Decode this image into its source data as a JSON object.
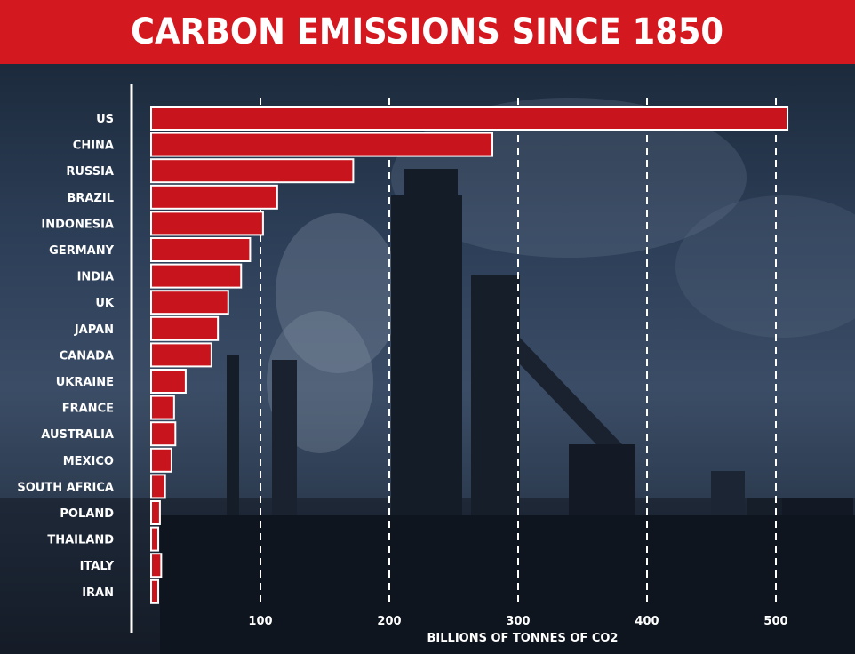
{
  "chart_data": {
    "type": "bar",
    "orientation": "horizontal",
    "title": "CARBON EMISSIONS SINCE 1850",
    "xlabel": "BILLIONS OF TONNES OF CO2",
    "categories": [
      "US",
      "CHINA",
      "RUSSIA",
      "BRAZIL",
      "INDONESIA",
      "GERMANY",
      "INDIA",
      "UK",
      "JAPAN",
      "CANADA",
      "UKRAINE",
      "FRANCE",
      "AUSTRALIA",
      "MEXICO",
      "SOUTH AFRICA",
      "POLAND",
      "THAILAND",
      "ITALY",
      "IRAN"
    ],
    "values": [
      509,
      280,
      172,
      113,
      102,
      92,
      85,
      75,
      67,
      62,
      42,
      33,
      34,
      31,
      26,
      22,
      19,
      23,
      18
    ],
    "xlim": [
      0,
      520
    ],
    "xticks": [
      "100",
      "200",
      "300",
      "400",
      "500"
    ],
    "grid": "vertical dashed",
    "bar_color": "#c8141c",
    "background": "dark industrial photo"
  }
}
